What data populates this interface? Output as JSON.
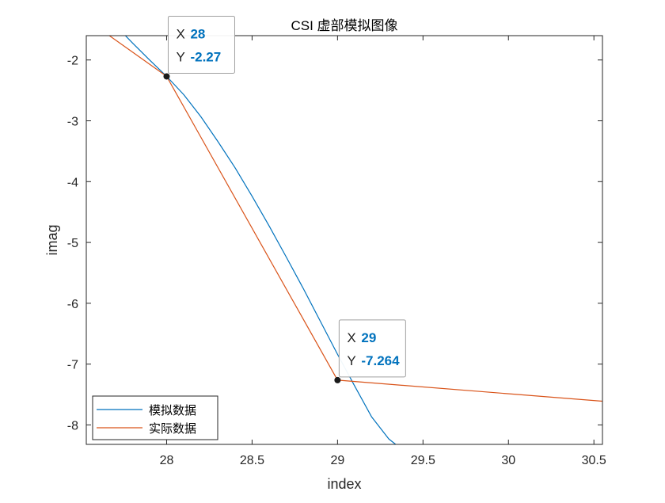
{
  "chart_data": {
    "type": "line",
    "title": "CSI 虚部模拟图像",
    "xlabel": "index",
    "ylabel": "imag",
    "xlim": [
      27.53,
      30.55
    ],
    "ylim": [
      -8.32,
      -1.6
    ],
    "xticks": [
      28,
      28.5,
      29,
      29.5,
      30,
      30.5
    ],
    "xtick_labels": [
      "28",
      "28.5",
      "29",
      "29.5",
      "30",
      "30.5"
    ],
    "yticks": [
      -2,
      -3,
      -4,
      -5,
      -6,
      -7,
      -8
    ],
    "ytick_labels": [
      "-2",
      "-3",
      "-4",
      "-5",
      "-6",
      "-7",
      "-8"
    ],
    "grid": false,
    "legend_position": "bottom-left",
    "series": [
      {
        "name": "模拟数据",
        "color": "#0072BD",
        "x": [
          27.53,
          27.6,
          27.7,
          27.8,
          27.9,
          28.0,
          28.1,
          28.2,
          28.3,
          28.4,
          28.5,
          28.6,
          28.7,
          28.8,
          28.9,
          29.0,
          29.1,
          29.2,
          29.3,
          29.34
        ],
        "y": [
          -0.91,
          -1.13,
          -1.43,
          -1.72,
          -2.0,
          -2.27,
          -2.57,
          -2.93,
          -3.34,
          -3.77,
          -4.24,
          -4.73,
          -5.24,
          -5.76,
          -6.3,
          -6.84,
          -7.36,
          -7.87,
          -8.23,
          -8.32
        ]
      },
      {
        "name": "实际数据",
        "color": "#D95319",
        "x": [
          27.53,
          28.0,
          29.0,
          30.55
        ],
        "y": [
          -1.33,
          -2.27,
          -7.264,
          -7.61
        ]
      }
    ],
    "datatips": [
      {
        "x_label": "X",
        "x_value": "28",
        "y_label": "Y",
        "y_value": "-2.27",
        "x": 28,
        "y": -2.27
      },
      {
        "x_label": "X",
        "x_value": "29",
        "y_label": "Y",
        "y_value": "-7.264",
        "x": 29,
        "y": -7.264
      }
    ]
  }
}
